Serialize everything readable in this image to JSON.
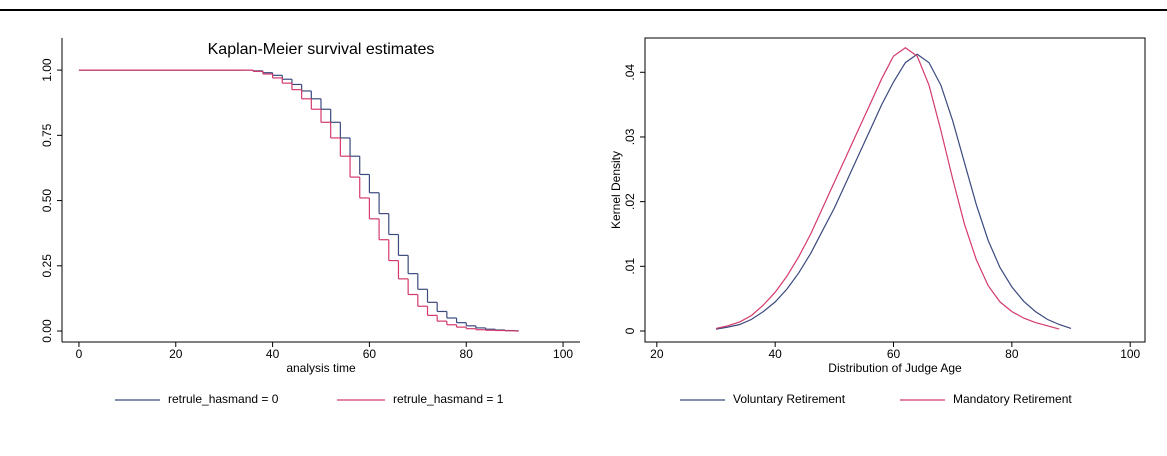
{
  "chart_data": [
    {
      "type": "line",
      "step": true,
      "title": "Kaplan-Meier survival estimates",
      "x_label": "analysis time",
      "x": [
        0,
        10,
        20,
        30,
        34,
        36,
        38,
        40,
        42,
        44,
        46,
        48,
        50,
        52,
        54,
        56,
        58,
        60,
        62,
        64,
        66,
        68,
        70,
        72,
        74,
        76,
        78,
        80,
        82,
        84,
        86,
        88,
        90
      ],
      "series": [
        {
          "name": "retrule_hasmand = 0",
          "color": "#3b4a7e",
          "values": [
            1,
            1,
            1,
            1,
            1,
            0.997,
            0.99,
            0.98,
            0.965,
            0.945,
            0.92,
            0.89,
            0.85,
            0.8,
            0.74,
            0.67,
            0.6,
            0.53,
            0.45,
            0.37,
            0.29,
            0.22,
            0.16,
            0.11,
            0.075,
            0.05,
            0.032,
            0.02,
            0.012,
            0.007,
            0.004,
            0.002,
            0.001
          ]
        },
        {
          "name": "retrule_hasmand = 1",
          "color": "#d43a6a",
          "values": [
            1,
            1,
            1,
            1,
            1,
            0.995,
            0.985,
            0.97,
            0.95,
            0.925,
            0.89,
            0.85,
            0.8,
            0.74,
            0.67,
            0.59,
            0.51,
            0.43,
            0.35,
            0.27,
            0.2,
            0.14,
            0.095,
            0.06,
            0.038,
            0.024,
            0.015,
            0.009,
            0.005,
            0.003,
            0.002,
            0.001,
            0
          ]
        }
      ],
      "xlim": [
        -3.5,
        103.5
      ],
      "xticks": [
        0,
        20,
        40,
        60,
        80,
        100
      ],
      "ylim": [
        -0.042,
        1.123
      ],
      "yticks": [
        {
          "value": 0,
          "label": "0.00"
        },
        {
          "value": 0.25,
          "label": "0.25"
        },
        {
          "value": 0.5,
          "label": "0.50"
        },
        {
          "value": 0.75,
          "label": "0.75"
        },
        {
          "value": 1,
          "label": "1.00"
        }
      ]
    },
    {
      "type": "line",
      "step": false,
      "x_label": "Distribution of Judge Age",
      "y_label": "Kernel Density",
      "x": [
        30,
        32,
        34,
        36,
        38,
        40,
        42,
        44,
        46,
        48,
        50,
        52,
        54,
        56,
        58,
        60,
        62,
        64,
        66,
        68,
        70,
        72,
        74,
        76,
        78,
        80,
        82,
        84,
        86,
        88,
        90
      ],
      "series": [
        {
          "name": "Voluntary Retirement",
          "color": "#3b4a7e",
          "values": [
            0.0003,
            0.0006,
            0.001,
            0.0018,
            0.003,
            0.0045,
            0.0065,
            0.009,
            0.012,
            0.0155,
            0.019,
            0.023,
            0.027,
            0.031,
            0.035,
            0.0385,
            0.0415,
            0.0428,
            0.0415,
            0.038,
            0.0325,
            0.026,
            0.0195,
            0.014,
            0.0098,
            0.0068,
            0.0046,
            0.003,
            0.0018,
            0.001,
            0.0004
          ]
        },
        {
          "name": "Mandatory Retirement",
          "color": "#d43a6a",
          "values": [
            0.0004,
            0.0008,
            0.0014,
            0.0024,
            0.004,
            0.006,
            0.0085,
            0.0115,
            0.015,
            0.019,
            0.023,
            0.027,
            0.031,
            0.035,
            0.039,
            0.0425,
            0.0438,
            0.0425,
            0.038,
            0.031,
            0.0235,
            0.0165,
            0.011,
            0.007,
            0.0045,
            0.003,
            0.002,
            0.0013,
            0.0008,
            0.0003,
            null
          ]
        }
      ],
      "xlim": [
        18,
        102.5
      ],
      "xticks": [
        20,
        40,
        60,
        80,
        100
      ],
      "ylim": [
        -0.0017,
        0.0453
      ],
      "yticks": [
        0,
        {
          "value": 0.01,
          "label": ".01"
        },
        {
          "value": 0.02,
          "label": ".02"
        },
        {
          "value": 0.03,
          "label": ".03"
        },
        {
          "value": 0.04,
          "label": ".04"
        }
      ]
    }
  ]
}
